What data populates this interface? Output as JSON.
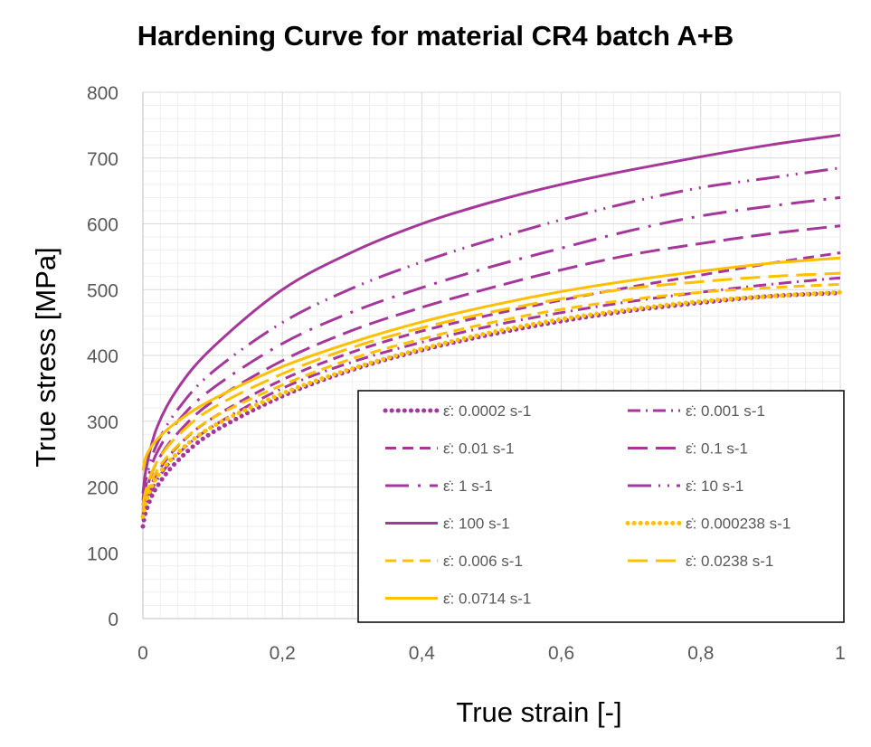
{
  "chart_data": {
    "type": "line",
    "title": "Hardening Curve for material CR4 batch A+B",
    "xlabel": "True strain [-]",
    "ylabel": "True stress [MPa]",
    "xlim": [
      0,
      1
    ],
    "ylim": [
      0,
      800
    ],
    "x_ticks": [
      "0",
      "0,2",
      "0,4",
      "0,6",
      "0,8",
      "1"
    ],
    "y_ticks": [
      "0",
      "100",
      "200",
      "300",
      "400",
      "500",
      "600",
      "700",
      "800"
    ],
    "grid": true,
    "legend_placement": "bottom-right",
    "x": [
      0,
      0.005,
      0.02,
      0.05,
      0.1,
      0.2,
      0.3,
      0.4,
      0.5,
      0.6,
      0.7,
      0.8,
      0.9,
      1.0
    ],
    "series": [
      {
        "name": "ε̇: 0.0002 s-1",
        "color": "#A5379A",
        "dash": "dot",
        "width": 5,
        "values": [
          140,
          165,
          200,
          240,
          283,
          338,
          378,
          408,
          432,
          452,
          468,
          480,
          490,
          495
        ]
      },
      {
        "name": "ε̇: 0.001 s-1",
        "color": "#A5379A",
        "dash": "dashdot",
        "width": 3,
        "values": [
          150,
          175,
          210,
          250,
          292,
          350,
          390,
          420,
          445,
          465,
          482,
          496,
          508,
          518
        ]
      },
      {
        "name": "ε̇: 0.01 s-1",
        "color": "#A5379A",
        "dash": "dash",
        "width": 3,
        "values": [
          158,
          183,
          220,
          262,
          305,
          363,
          405,
          437,
          462,
          484,
          504,
          522,
          540,
          556
        ]
      },
      {
        "name": "ε̇: 0.1 s-1",
        "color": "#A5379A",
        "dash": "longdash",
        "width": 3,
        "values": [
          165,
          195,
          238,
          282,
          330,
          392,
          438,
          473,
          503,
          530,
          553,
          570,
          585,
          597
        ]
      },
      {
        "name": "ε̇: 1 s-1",
        "color": "#A5379A",
        "dash": "longdashdot",
        "width": 3,
        "values": [
          172,
          205,
          252,
          300,
          350,
          418,
          466,
          503,
          535,
          563,
          590,
          612,
          627,
          640
        ]
      },
      {
        "name": "ε̇: 10 s-1",
        "color": "#A5379A",
        "dash": "longdashdotdot",
        "width": 3,
        "values": [
          180,
          215,
          265,
          318,
          375,
          450,
          502,
          542,
          576,
          606,
          633,
          655,
          670,
          685
        ]
      },
      {
        "name": "ε̇: 100 s-1",
        "color": "#A5379A",
        "dash": "solid",
        "width": 3,
        "values": [
          190,
          230,
          290,
          350,
          412,
          500,
          557,
          600,
          633,
          660,
          682,
          702,
          720,
          735
        ]
      },
      {
        "name": "ε̇: 0.000238 s-1",
        "color": "#FFC000",
        "dash": "dot",
        "width": 5,
        "values": [
          155,
          180,
          215,
          252,
          292,
          342,
          380,
          410,
          435,
          455,
          470,
          482,
          490,
          496
        ]
      },
      {
        "name": "ε̇: 0.006 s-1",
        "color": "#FFC000",
        "dash": "dash",
        "width": 3,
        "values": [
          162,
          188,
          225,
          263,
          305,
          355,
          395,
          425,
          450,
          470,
          485,
          496,
          503,
          508
        ]
      },
      {
        "name": "ε̇: 0.0238 s-1",
        "color": "#FFC000",
        "dash": "longdash",
        "width": 3,
        "values": [
          170,
          198,
          238,
          278,
          320,
          372,
          412,
          442,
          466,
          486,
          502,
          512,
          520,
          525
        ]
      },
      {
        "name": "ε̇: 0.0714 s-1",
        "color": "#FFC000",
        "dash": "solid",
        "width": 3,
        "values": [
          225,
          248,
          272,
          300,
          333,
          383,
          420,
          451,
          476,
          497,
          514,
          528,
          540,
          548
        ]
      }
    ]
  }
}
